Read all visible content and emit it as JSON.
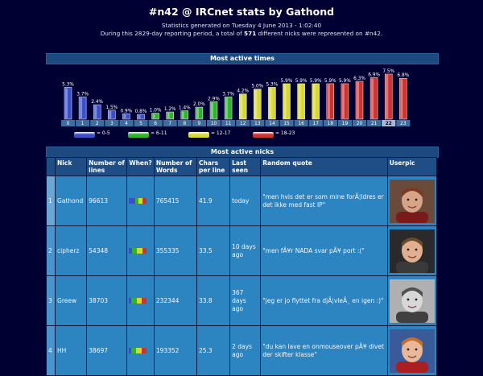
{
  "header": {
    "title": "#n42 @ IRCnet stats by Gathond",
    "generated": "Statistics generated on Tuesday 4 June 2013 - 1:02:40",
    "period_prefix": "During this 2829-day reporting period, a total of ",
    "nick_count": "571",
    "period_suffix": " different nicks were represented on #n42."
  },
  "times": {
    "heading": "Most active times",
    "legend": [
      {
        "label": "= 0-5",
        "color": "#3a4fc8"
      },
      {
        "label": "= 6-11",
        "color": "#2cb52c"
      },
      {
        "label": "= 12-17",
        "color": "#d8d832"
      },
      {
        "label": "= 18-23",
        "color": "#cc3333"
      }
    ]
  },
  "chart_data": {
    "type": "bar",
    "title": "Most active times",
    "categories": [
      "0",
      "1",
      "2",
      "3",
      "4",
      "5",
      "6",
      "7",
      "8",
      "9",
      "10",
      "11",
      "12",
      "13",
      "14",
      "15",
      "16",
      "17",
      "18",
      "19",
      "20",
      "21",
      "22",
      "23"
    ],
    "values": [
      5.3,
      3.7,
      2.4,
      1.5,
      0.9,
      0.8,
      1.0,
      1.2,
      1.4,
      2.0,
      2.9,
      3.7,
      4.2,
      5.0,
      5.3,
      5.9,
      5.9,
      5.9,
      5.9,
      5.9,
      6.3,
      6.9,
      7.5,
      6.8
    ],
    "value_labels": [
      "5.3%",
      "3.7%",
      "2.4%",
      "1.5%",
      "0.9%",
      "0.8%",
      "1.0%",
      "1.2%",
      "1.4%",
      "2.0%",
      "2.9%",
      "3.7%",
      "4.2%",
      "5.0%",
      "5.3%",
      "5.9%",
      "5.9%",
      "5.9%",
      "5.9%",
      "5.9%",
      "6.3%",
      "6.9%",
      "7.5%",
      "6.8%"
    ],
    "highlighted_hour": "22",
    "colors": {
      "0-5": "#3a4fc8",
      "6-11": "#2cb52c",
      "12-17": "#d8d832",
      "18-23": "#cc3333"
    },
    "ylim": [
      0,
      7.5
    ]
  },
  "nicks": {
    "heading": "Most active nicks",
    "columns": [
      "Nick",
      "Number of lines",
      "When?",
      "Number of Words",
      "Chars per line",
      "Last seen",
      "Random quote",
      "Userpic"
    ],
    "rows": [
      {
        "rank": "1",
        "nick": "Gathond",
        "lines": "96613",
        "when": [
          0.35,
          0.2,
          0.2,
          0.25
        ],
        "words": "765415",
        "cpl": "41.9",
        "last": "today",
        "quote": "\"men hvis det er som mine forÃ¦ldres er det ikke med fast IP\""
      },
      {
        "rank": "2",
        "nick": "cipherz",
        "lines": "54348",
        "when": [
          0.15,
          0.3,
          0.3,
          0.25
        ],
        "words": "355335",
        "cpl": "33.5",
        "last": "10 days ago",
        "quote": "\"men fÃ¥r NADA svar pÃ¥ port :(\""
      },
      {
        "rank": "3",
        "nick": "Greew",
        "lines": "38703",
        "when": [
          0.1,
          0.35,
          0.25,
          0.3
        ],
        "words": "232344",
        "cpl": "33.8",
        "last": "367 days ago",
        "quote": "\"jeg er jo flyttet fra djÃ¦vleÃ¸ en igen :)\""
      },
      {
        "rank": "4",
        "nick": "HH",
        "lines": "38697",
        "when": [
          0.1,
          0.3,
          0.3,
          0.3
        ],
        "words": "193352",
        "cpl": "25.3",
        "last": "2 days ago",
        "quote": "\"du kan lave en onmouseover pÃ¥ divet der skifter klasse\""
      }
    ]
  }
}
